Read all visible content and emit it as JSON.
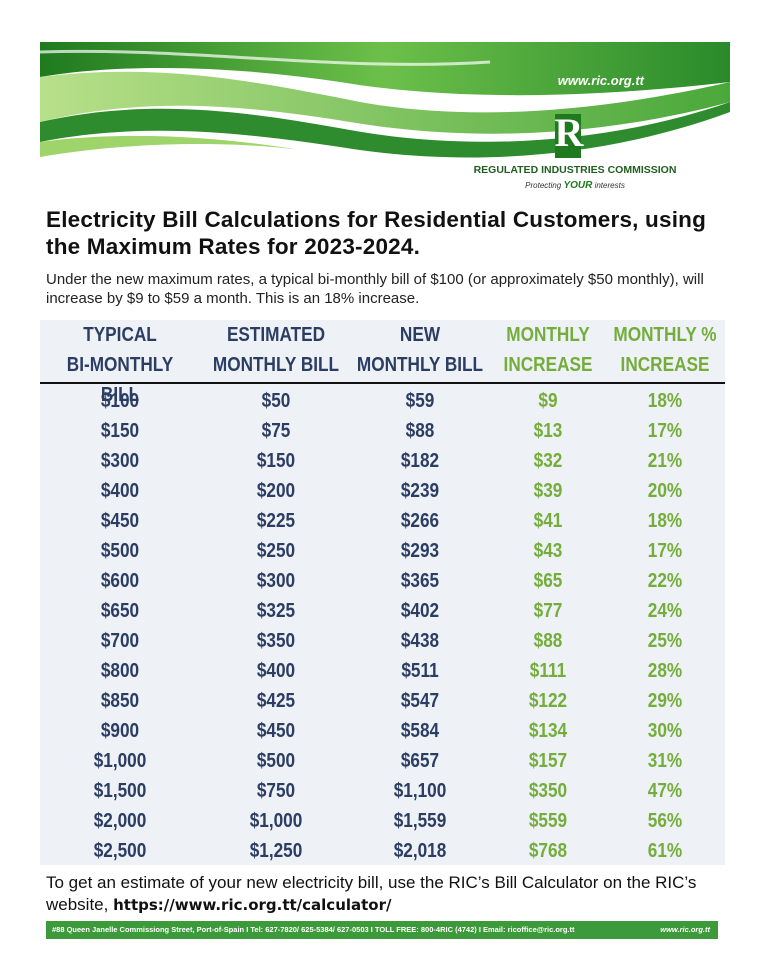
{
  "header": {
    "website": "www.ric.org.tt",
    "logo_letter": "R",
    "org_name": "REGULATED INDUSTRIES COMMISSION",
    "tagline_pre": "Protecting",
    "tagline_em": "YOUR",
    "tagline_post": "interests"
  },
  "title": "Electricity Bill Calculations for Residential Customers, using the Maximum Rates for 2023-2024.",
  "intro": "Under the new maximum rates, a typical bi-monthly bill of $100 (or approximately $50 monthly), will increase by $9 to $59 a month. This is an 18% increase.",
  "table": {
    "columns": [
      [
        "TYPICAL",
        "BI-MONTHLY BILL"
      ],
      [
        "ESTIMATED",
        "MONTHLY BILL"
      ],
      [
        "NEW",
        "MONTHLY BILL"
      ],
      [
        "MONTHLY",
        "INCREASE"
      ],
      [
        "MONTHLY %",
        "INCREASE"
      ]
    ],
    "rows": [
      [
        "$100",
        "$50",
        "$59",
        "$9",
        "18%"
      ],
      [
        "$150",
        "$75",
        "$88",
        "$13",
        "17%"
      ],
      [
        "$300",
        "$150",
        "$182",
        "$32",
        "21%"
      ],
      [
        "$400",
        "$200",
        "$239",
        "$39",
        "20%"
      ],
      [
        "$450",
        "$225",
        "$266",
        "$41",
        "18%"
      ],
      [
        "$500",
        "$250",
        "$293",
        "$43",
        "17%"
      ],
      [
        "$600",
        "$300",
        "$365",
        "$65",
        "22%"
      ],
      [
        "$650",
        "$325",
        "$402",
        "$77",
        "24%"
      ],
      [
        "$700",
        "$350",
        "$438",
        "$88",
        "25%"
      ],
      [
        "$800",
        "$400",
        "$511",
        "$111",
        "28%"
      ],
      [
        "$850",
        "$425",
        "$547",
        "$122",
        "29%"
      ],
      [
        "$900",
        "$450",
        "$584",
        "$134",
        "30%"
      ],
      [
        "$1,000",
        "$500",
        "$657",
        "$157",
        "31%"
      ],
      [
        "$1,500",
        "$750",
        "$1,100",
        "$350",
        "47%"
      ],
      [
        "$2,000",
        "$1,000",
        "$1,559",
        "$559",
        "56%"
      ],
      [
        "$2,500",
        "$1,250",
        "$2,018",
        "$768",
        "61%"
      ]
    ]
  },
  "note": {
    "text": "To get an estimate of your new electricity bill, use the RIC’s Bill Calculator on the RIC’s website,",
    "link": "https://www.ric.org.tt/calculator/"
  },
  "footer": {
    "address": "#88 Queen Janelle Commissiong Street, Port-of-Spain I Tel: 627-7820/ 625-5384/ 627-0503 I TOLL FREE: 800-4RIC (4742) I Email: ricoffice@ric.org.tt",
    "website": "www.ric.org.tt"
  }
}
